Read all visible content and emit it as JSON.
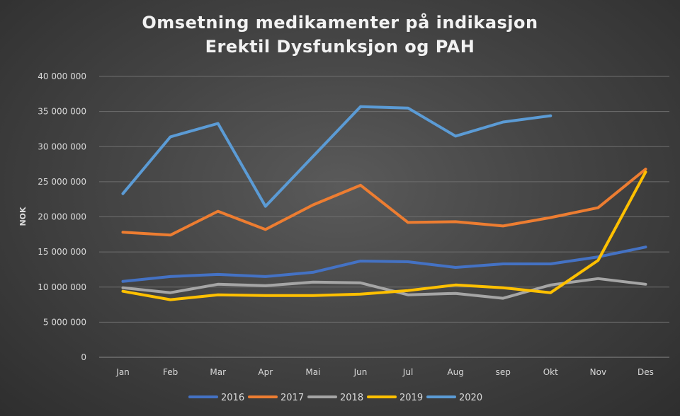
{
  "chart_data": {
    "type": "line",
    "title_lines": [
      "Omsetning medikamenter på indikasjon",
      "Erektil Dysfunksjon og PAH"
    ],
    "xlabel": "",
    "ylabel": "NOK",
    "categories": [
      "Jan",
      "Feb",
      "Mar",
      "Apr",
      "Mai",
      "Jun",
      "Jul",
      "Aug",
      "sep",
      "Okt",
      "Nov",
      "Des"
    ],
    "ylim": [
      0,
      40000000
    ],
    "yticks": [
      0,
      5000000,
      10000000,
      15000000,
      20000000,
      25000000,
      30000000,
      35000000,
      40000000
    ],
    "ytick_labels": [
      "0",
      "5 000 000",
      "10 000 000",
      "15 000 000",
      "20 000 000",
      "25 000 000",
      "30 000 000",
      "35 000 000",
      "40 000 000"
    ],
    "grid": true,
    "legend_position": "bottom",
    "series": [
      {
        "name": "2016",
        "color": "#4472c4",
        "values": [
          10800000,
          11500000,
          11800000,
          11500000,
          12100000,
          13700000,
          13600000,
          12800000,
          13300000,
          13300000,
          14300000,
          15700000
        ]
      },
      {
        "name": "2017",
        "color": "#ed7d31",
        "values": [
          17800000,
          17400000,
          20800000,
          18200000,
          21700000,
          24500000,
          19200000,
          19300000,
          18700000,
          19900000,
          21300000,
          26800000
        ]
      },
      {
        "name": "2018",
        "color": "#a5a5a5",
        "values": [
          9900000,
          9200000,
          10400000,
          10200000,
          10700000,
          10600000,
          8900000,
          9100000,
          8400000,
          10300000,
          11200000,
          10400000
        ]
      },
      {
        "name": "2019",
        "color": "#ffc000",
        "values": [
          9400000,
          8200000,
          8900000,
          8800000,
          8800000,
          9000000,
          9500000,
          10300000,
          9900000,
          9200000,
          13800000,
          26400000
        ]
      },
      {
        "name": "2020",
        "color": "#5b9bd5",
        "values": [
          23300000,
          31400000,
          33300000,
          21500000,
          28600000,
          35700000,
          35500000,
          31500000,
          33500000,
          34400000,
          null,
          null
        ]
      }
    ]
  }
}
